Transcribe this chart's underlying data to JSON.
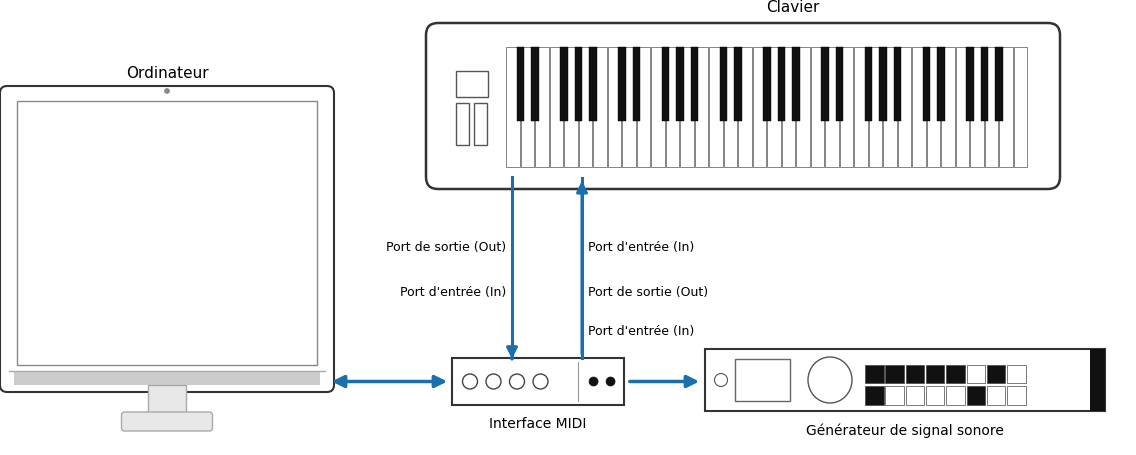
{
  "title_computer": "Ordinateur",
  "title_keyboard": "Clavier",
  "title_interface": "Interface MIDI",
  "title_generator": "Générateur de signal sonore",
  "label_out_keyboard": "Port de sortie (Out)",
  "label_in_keyboard": "Port d'entrée (In)",
  "label_in_interface": "Port d'entrée (In)",
  "label_out_interface": "Port de sortie (Out)",
  "label_in_generator": "Port d'entrée (In)",
  "arrow_color": "#1a6faf",
  "bg_color": "#ffffff",
  "text_color": "#000000",
  "edge_color": "#333333"
}
